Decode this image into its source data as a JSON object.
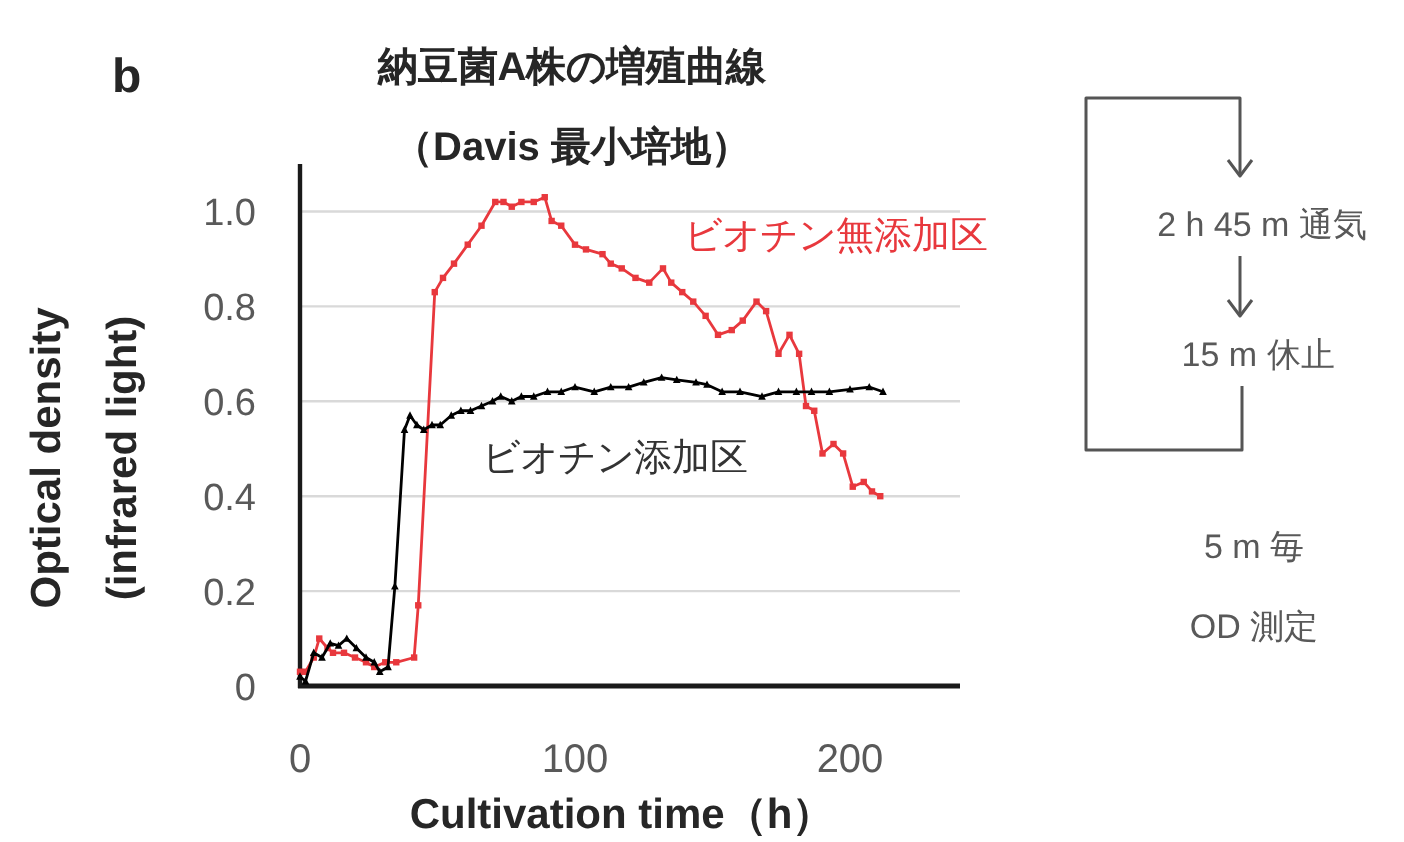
{
  "chart_data": {
    "type": "line",
    "title": "納豆菌A株の増殖曲線",
    "subtitle": "（Davis 最小培地）",
    "xlabel": "Cultivation time（h）",
    "ylabel": "Optical density\n(infrared light)",
    "annotations": [
      "b",
      "2 h 45 m 通気",
      "15 m 休止",
      "5 m 毎",
      "OD 測定"
    ],
    "xlim": [
      0,
      240
    ],
    "xticks": [
      0,
      100,
      200
    ],
    "ylim": [
      0,
      1.1
    ],
    "yticks": [
      0,
      0.2,
      0.4,
      0.6,
      0.8,
      {
        "value": 1,
        "label": "1.0"
      }
    ],
    "grid": "y",
    "legend": false,
    "series": [
      {
        "name": "ビオチン無添加区",
        "color": "#e8383d",
        "marker": "square",
        "x": [
          0,
          2,
          5,
          7,
          10,
          12,
          16,
          20,
          24,
          27,
          31,
          35,
          41.5,
          43,
          49,
          52,
          56,
          61,
          66,
          71,
          74,
          77,
          80.5,
          85,
          89,
          91.5,
          95,
          100,
          104,
          110,
          113,
          117,
          122,
          127,
          132,
          135,
          139,
          143,
          147.5,
          152,
          157,
          161,
          166,
          169.5,
          174,
          178,
          181.5,
          184,
          187,
          190,
          194,
          197.5,
          201,
          205,
          208,
          211
        ],
        "values": [
          0.03,
          0.03,
          0.06,
          0.1,
          0.08,
          0.07,
          0.07,
          0.06,
          0.05,
          0.04,
          0.05,
          0.05,
          0.06,
          0.17,
          0.83,
          0.86,
          0.89,
          0.93,
          0.97,
          1.02,
          1.02,
          1.01,
          1.02,
          1.02,
          1.03,
          0.98,
          0.97,
          0.93,
          0.92,
          0.91,
          0.89,
          0.88,
          0.86,
          0.85,
          0.88,
          0.85,
          0.83,
          0.81,
          0.78,
          0.74,
          0.75,
          0.77,
          0.81,
          0.79,
          0.7,
          0.74,
          0.7,
          0.59,
          0.58,
          0.49,
          0.51,
          0.49,
          0.42,
          0.43,
          0.41,
          0.4
        ]
      },
      {
        "name": "ビオチン添加区",
        "color": "#000000",
        "marker": "triangle",
        "x": [
          0,
          2,
          5,
          8,
          11,
          14,
          17,
          20.5,
          24,
          27,
          29,
          32,
          34.5,
          38,
          40,
          42.5,
          45,
          48,
          51,
          55,
          58.5,
          62,
          66,
          70,
          73,
          77,
          80.5,
          85,
          90,
          95,
          100,
          107,
          113,
          119.5,
          125,
          131.5,
          137,
          144,
          148,
          153.5,
          160,
          168,
          174,
          180.5,
          186,
          192.5,
          200,
          207,
          212
        ],
        "values": [
          0.02,
          0.01,
          0.07,
          0.06,
          0.09,
          0.085,
          0.1,
          0.08,
          0.06,
          0.05,
          0.03,
          0.04,
          0.21,
          0.54,
          0.57,
          0.55,
          0.54,
          0.55,
          0.55,
          0.57,
          0.58,
          0.58,
          0.59,
          0.6,
          0.61,
          0.6,
          0.61,
          0.61,
          0.62,
          0.62,
          0.63,
          0.62,
          0.63,
          0.63,
          0.64,
          0.65,
          0.645,
          0.64,
          0.635,
          0.62,
          0.62,
          0.61,
          0.62,
          0.62,
          0.62,
          0.62,
          0.625,
          0.63,
          0.62
        ]
      }
    ]
  }
}
